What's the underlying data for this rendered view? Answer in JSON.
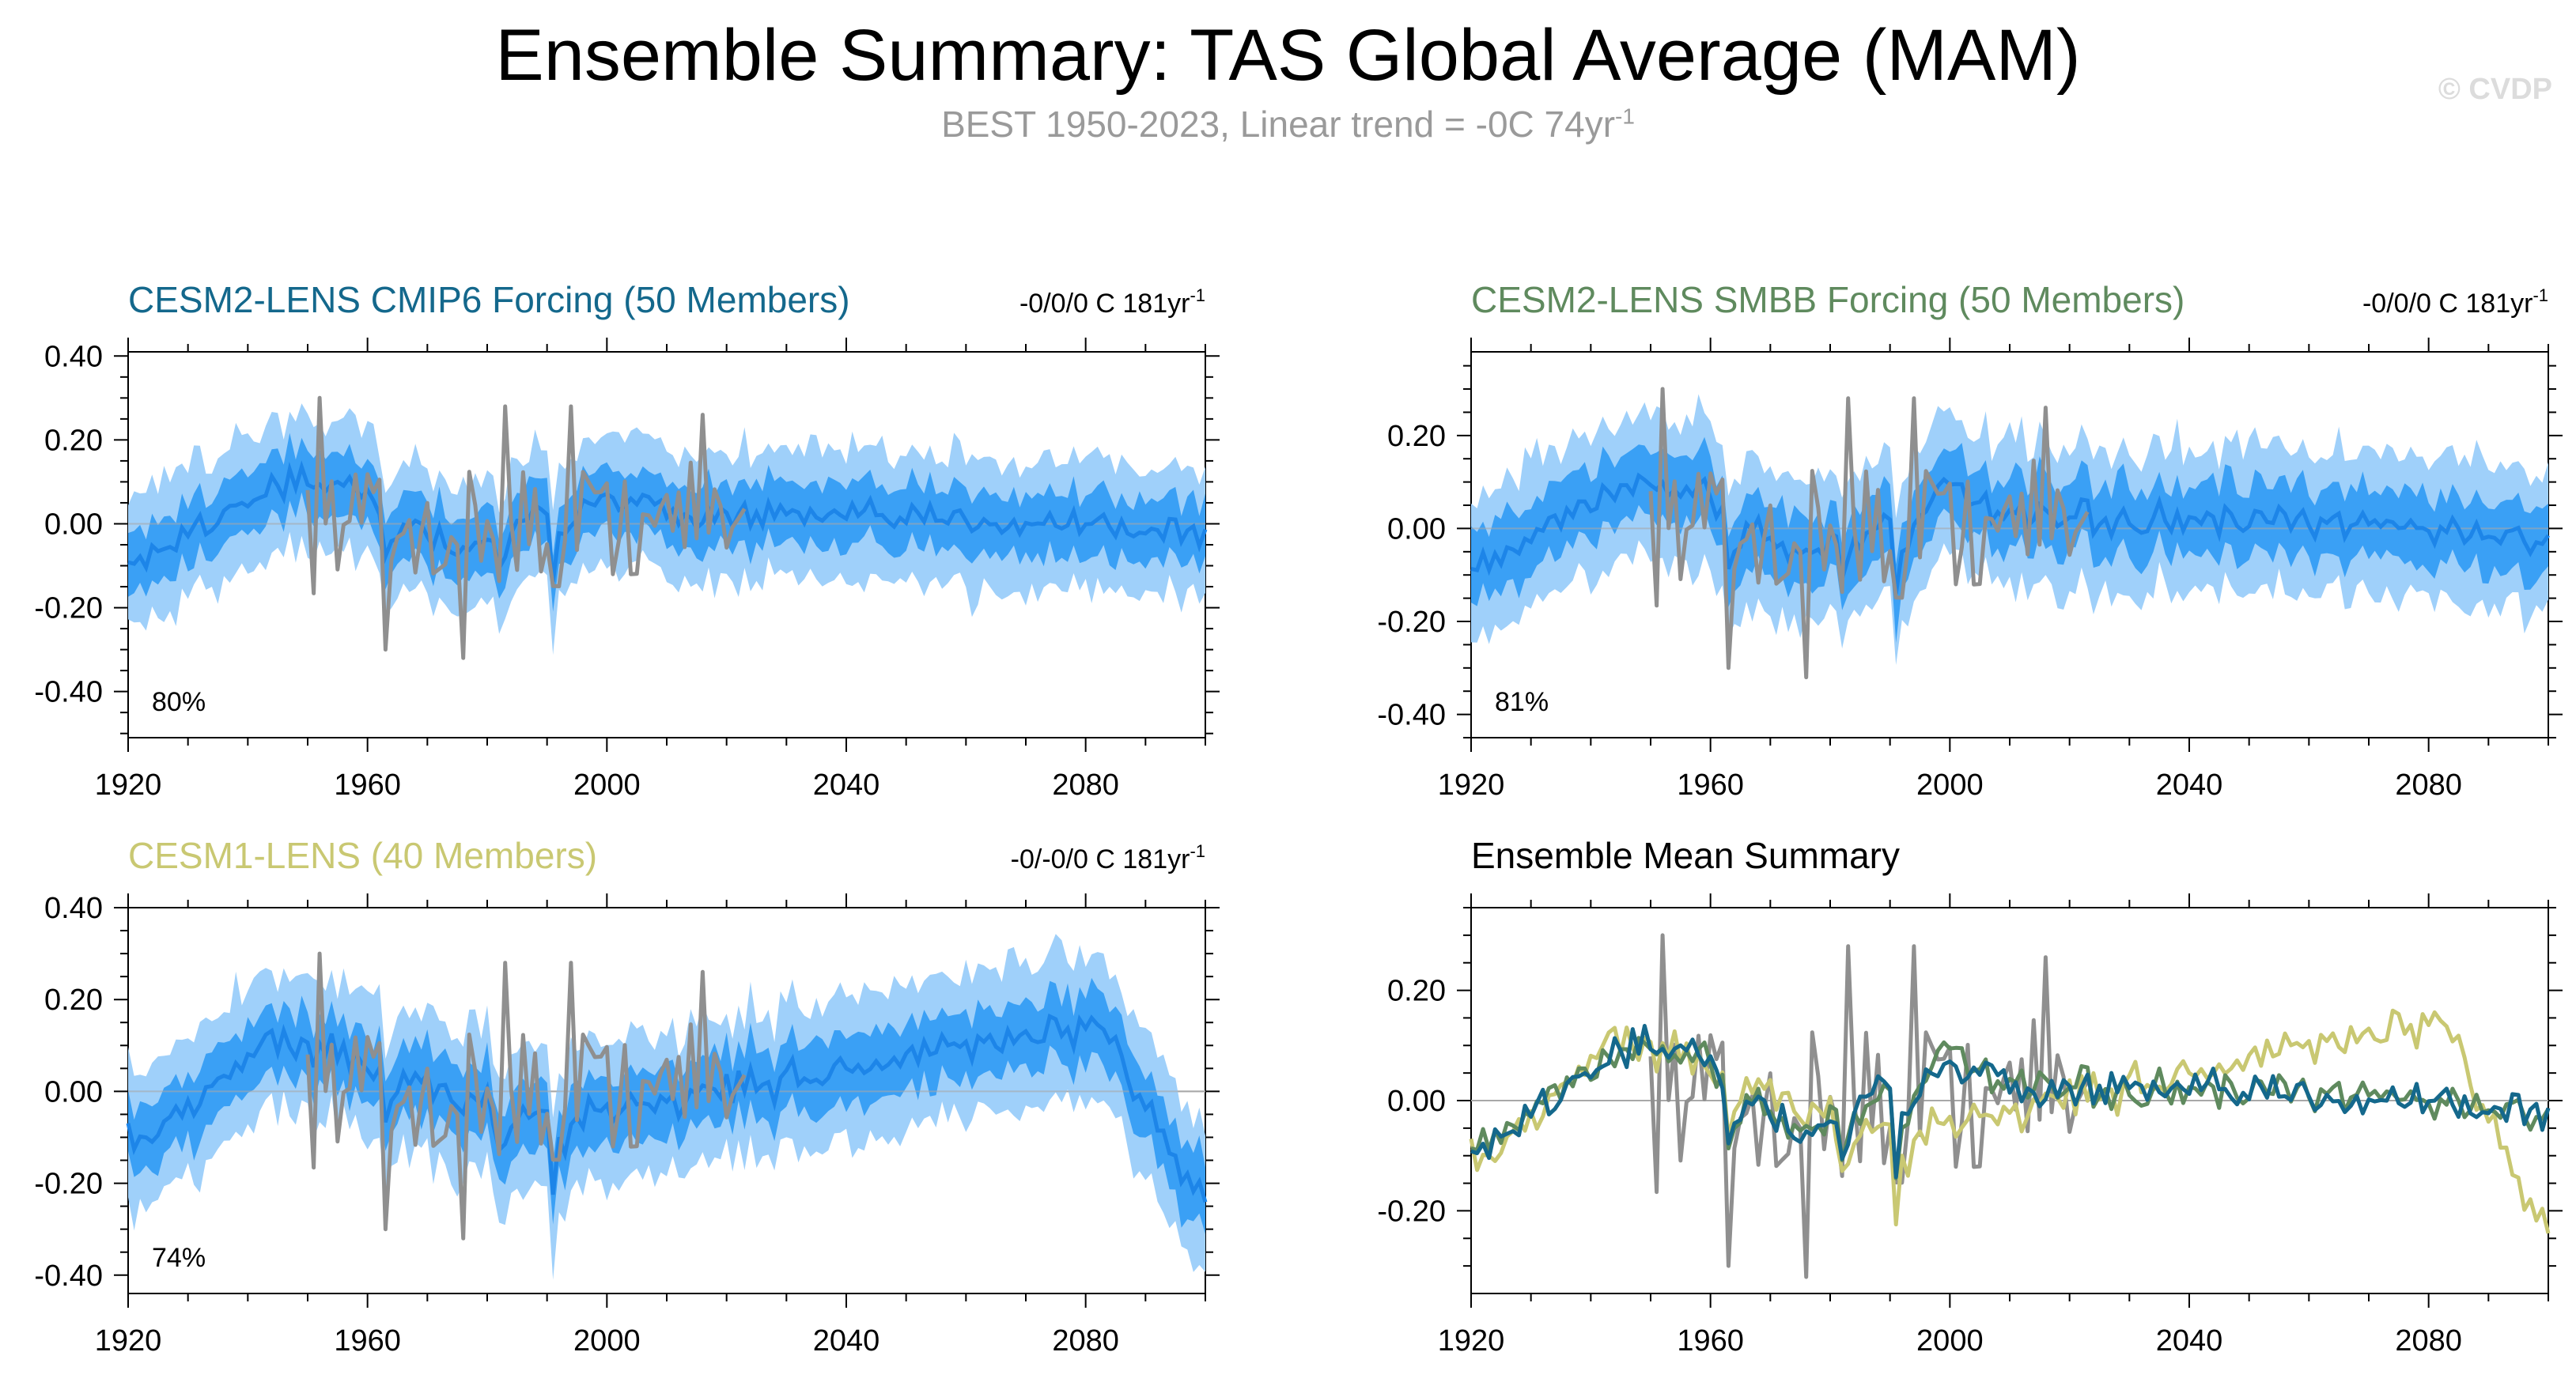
{
  "title": "Ensemble Summary: TAS Global Average (MAM)",
  "subtitle": {
    "text": "BEST 1950-2023, Linear trend = -0C 74yr",
    "sup": "-1"
  },
  "copyright": "© CVDP",
  "colors": {
    "band_outer": "#9fd0fa",
    "band_inner": "#3aa0f5",
    "mean_line": "#1d85e8",
    "obs_line": "#8f8f8f",
    "zero_line": "#a8a8a8",
    "cesm2_cmip6": "#14688c",
    "cesm2_smbb": "#5f8a5e",
    "cesm1": "#c9c872"
  },
  "panels": [
    {
      "id": "p1",
      "title": "CESM2-LENS CMIP6 Forcing (50 Members)",
      "title_color": "#14688c",
      "trend": "-0/0/0 C 181yr",
      "trend_sup": "-1",
      "pct": "80%",
      "type": "band",
      "model": "cmip6"
    },
    {
      "id": "p2",
      "title": "CESM2-LENS SMBB Forcing (50 Members)",
      "title_color": "#5f8a5e",
      "trend": "-0/0/0 C 181yr",
      "trend_sup": "-1",
      "pct": "81%",
      "type": "band",
      "model": "smbb"
    },
    {
      "id": "p3",
      "title": "CESM1-LENS (40 Members)",
      "title_color": "#c9c872",
      "trend": "-0/-0/0 C 181yr",
      "trend_sup": "-1",
      "pct": "74%",
      "type": "band",
      "model": "cesm1"
    },
    {
      "id": "p4",
      "title": "Ensemble Mean Summary",
      "title_color": "#000000",
      "trend": "",
      "trend_sup": "",
      "pct": "",
      "type": "summary",
      "model": "all"
    }
  ],
  "chart_data": [
    {
      "type": "area",
      "title": "CESM2-LENS CMIP6 Forcing (50 Members)",
      "xlabel": "",
      "ylabel": "",
      "xlim": [
        1920,
        2100
      ],
      "ylim": [
        -0.5,
        0.4
      ],
      "xticks": [
        "1920",
        "1960",
        "2000",
        "2040",
        "2080"
      ],
      "yticks": [
        "0.40",
        "0.20",
        "0.00",
        "-0.20",
        "-0.40"
      ],
      "annotation": "80%",
      "series": [
        {
          "name": "ensemble mean",
          "x_range": [
            1920,
            2100
          ],
          "description": "mean 10-90% spread bands"
        },
        {
          "name": "BEST observations",
          "x_range": [
            1950,
            2023
          ]
        }
      ]
    },
    {
      "type": "area",
      "title": "CESM2-LENS SMBB Forcing (50 Members)",
      "xlim": [
        1920,
        2100
      ],
      "ylim": [
        -0.45,
        0.38
      ],
      "xticks": [
        "1920",
        "1960",
        "2000",
        "2040",
        "2080"
      ],
      "yticks": [
        "0.20",
        "0.00",
        "-0.20",
        "-0.40"
      ],
      "annotation": "81%",
      "series": [
        {
          "name": "ensemble mean",
          "x_range": [
            1920,
            2100
          ]
        },
        {
          "name": "BEST observations",
          "x_range": [
            1950,
            2023
          ]
        }
      ]
    },
    {
      "type": "area",
      "title": "CESM1-LENS (40 Members)",
      "xlim": [
        1920,
        2100
      ],
      "ylim": [
        -0.45,
        0.4
      ],
      "xticks": [
        "1920",
        "1960",
        "2000",
        "2040",
        "2080"
      ],
      "yticks": [
        "0.40",
        "0.20",
        "0.00",
        "-0.20",
        "-0.40"
      ],
      "annotation": "74%",
      "series": [
        {
          "name": "ensemble mean",
          "x_range": [
            1920,
            2100
          ]
        },
        {
          "name": "BEST observations",
          "x_range": [
            1950,
            2023
          ]
        }
      ]
    },
    {
      "type": "line",
      "title": "Ensemble Mean Summary",
      "xlim": [
        1920,
        2100
      ],
      "ylim": [
        -0.35,
        0.35
      ],
      "xticks": [
        "1920",
        "1960",
        "2000",
        "2040",
        "2080"
      ],
      "yticks": [
        "0.20",
        "0.00",
        "-0.20"
      ],
      "series": [
        {
          "name": "BEST",
          "x_range": [
            1950,
            2023
          ]
        },
        {
          "name": "CESM2-LENS CMIP6"
        },
        {
          "name": "CESM2-LENS SMBB"
        },
        {
          "name": "CESM1-LENS"
        }
      ]
    }
  ]
}
